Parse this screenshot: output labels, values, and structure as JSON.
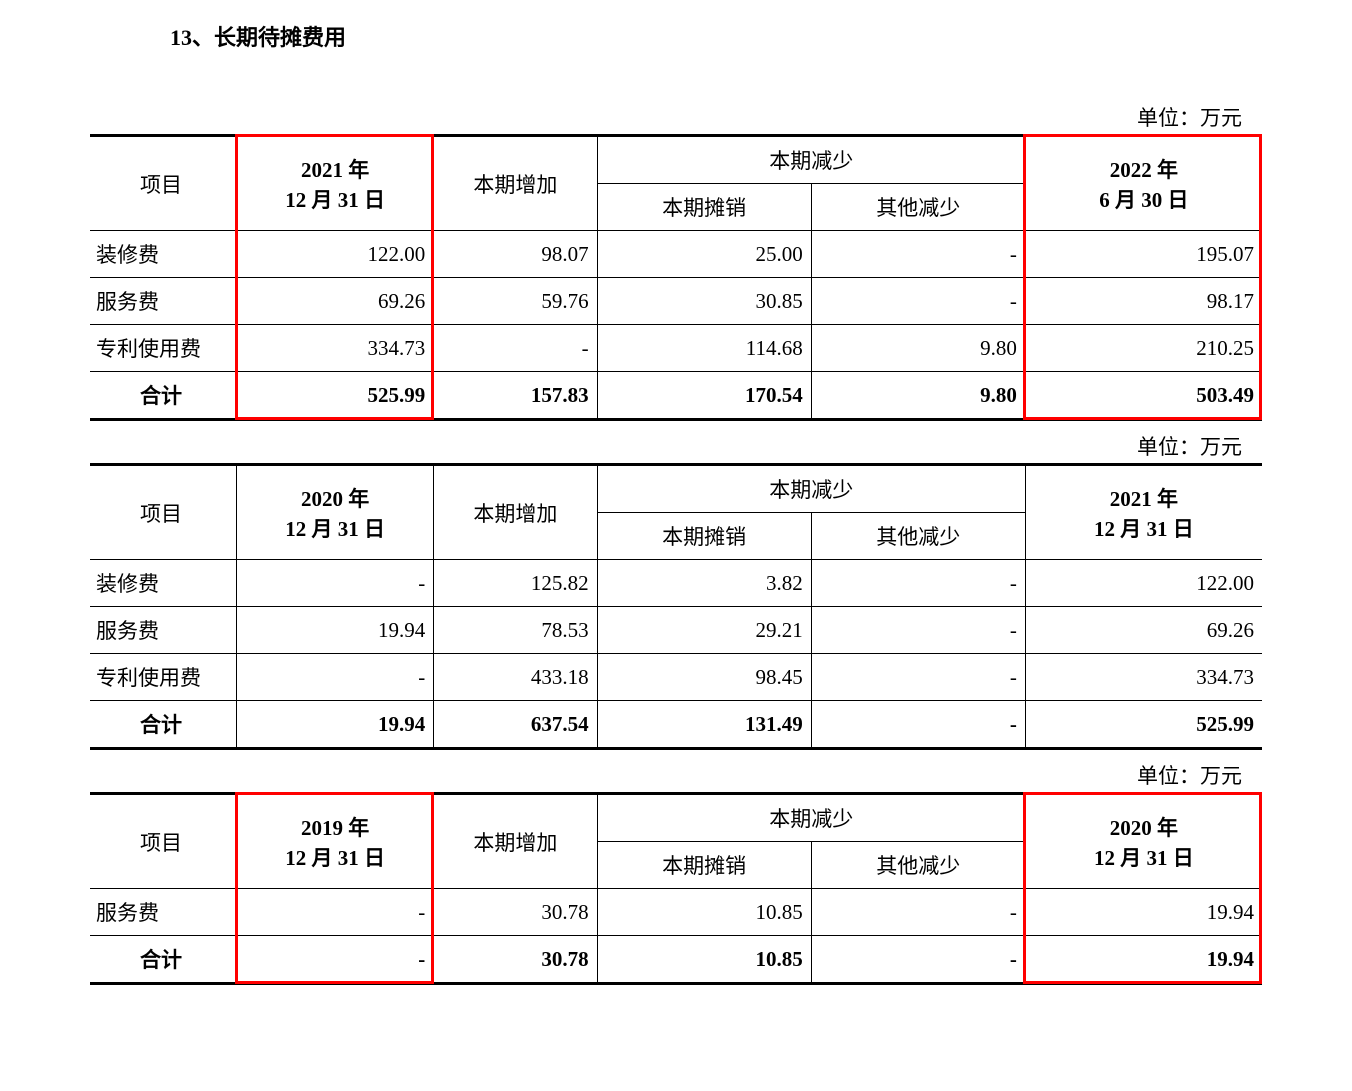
{
  "sectionTitle": "13、长期待摊费用",
  "unitLabel": "单位：万元",
  "headers": {
    "item": "项目",
    "increase": "本期增加",
    "decrease": "本期减少",
    "amortization": "本期摊销",
    "otherDecrease": "其他减少",
    "total": "合计"
  },
  "tables": [
    {
      "startDate": "2021 年\n12 月 31 日",
      "endDate": "2022 年\n6 月 30 日",
      "highlightStart": true,
      "highlightEnd": true,
      "rows": [
        {
          "item": "装修费",
          "start": "122.00",
          "inc": "98.07",
          "amort": "25.00",
          "other": "-",
          "end": "195.07"
        },
        {
          "item": "服务费",
          "start": "69.26",
          "inc": "59.76",
          "amort": "30.85",
          "other": "-",
          "end": "98.17"
        },
        {
          "item": "专利使用费",
          "start": "334.73",
          "inc": "-",
          "amort": "114.68",
          "other": "9.80",
          "end": "210.25"
        }
      ],
      "totalRow": {
        "start": "525.99",
        "inc": "157.83",
        "amort": "170.54",
        "other": "9.80",
        "end": "503.49"
      }
    },
    {
      "startDate": "2020 年\n12 月 31 日",
      "endDate": "2021 年\n12 月 31 日",
      "highlightStart": false,
      "highlightEnd": false,
      "rows": [
        {
          "item": "装修费",
          "start": "-",
          "inc": "125.82",
          "amort": "3.82",
          "other": "-",
          "end": "122.00"
        },
        {
          "item": "服务费",
          "start": "19.94",
          "inc": "78.53",
          "amort": "29.21",
          "other": "-",
          "end": "69.26"
        },
        {
          "item": "专利使用费",
          "start": "-",
          "inc": "433.18",
          "amort": "98.45",
          "other": "-",
          "end": "334.73"
        }
      ],
      "totalRow": {
        "start": "19.94",
        "inc": "637.54",
        "amort": "131.49",
        "other": "-",
        "end": "525.99"
      }
    },
    {
      "startDate": "2019 年\n12 月 31 日",
      "endDate": "2020 年\n12 月 31 日",
      "highlightStart": true,
      "highlightEnd": true,
      "rows": [
        {
          "item": "服务费",
          "start": "-",
          "inc": "30.78",
          "amort": "10.85",
          "other": "-",
          "end": "19.94"
        }
      ],
      "totalRow": {
        "start": "-",
        "inc": "30.78",
        "amort": "10.85",
        "other": "-",
        "end": "19.94"
      }
    }
  ],
  "styling": {
    "pageWidth": 1352,
    "pageHeight": 1091,
    "background": "#ffffff",
    "textColor": "#000000",
    "borderColor": "#000000",
    "highlightColor": "#ff0000",
    "thickBorderWidth": 3,
    "thinBorderWidth": 1,
    "titleFontSize": 22,
    "bodyFontSize": 21,
    "columnWidths": {
      "item": 130,
      "start": 175,
      "increase": 145,
      "amort": 190,
      "other": 190,
      "end": 210
    }
  }
}
